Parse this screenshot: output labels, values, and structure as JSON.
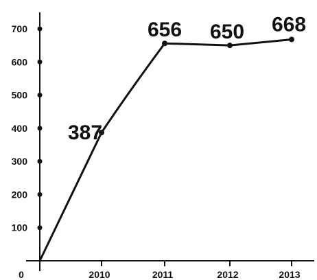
{
  "chart_data": {
    "type": "line",
    "title": "",
    "xlabel": "",
    "ylabel": "",
    "origin_label": "0",
    "categories": [
      "2010",
      "2011",
      "2012",
      "2013"
    ],
    "series": [
      {
        "points": [
          {
            "x": "2009",
            "y": 0
          },
          {
            "x": "2010",
            "y": 387
          },
          {
            "x": "2011",
            "y": 656
          },
          {
            "x": "2012",
            "y": 650
          },
          {
            "x": "2013",
            "y": 668
          }
        ]
      }
    ],
    "data_labels": [
      "387",
      "656",
      "650",
      "668"
    ],
    "yticks": [
      100,
      200,
      300,
      400,
      500,
      600,
      700
    ],
    "ylim": [
      0,
      760
    ],
    "grid": false,
    "legend": "none",
    "colors": {
      "line": "#111111",
      "axis": "#111111",
      "text": "#111111"
    }
  }
}
